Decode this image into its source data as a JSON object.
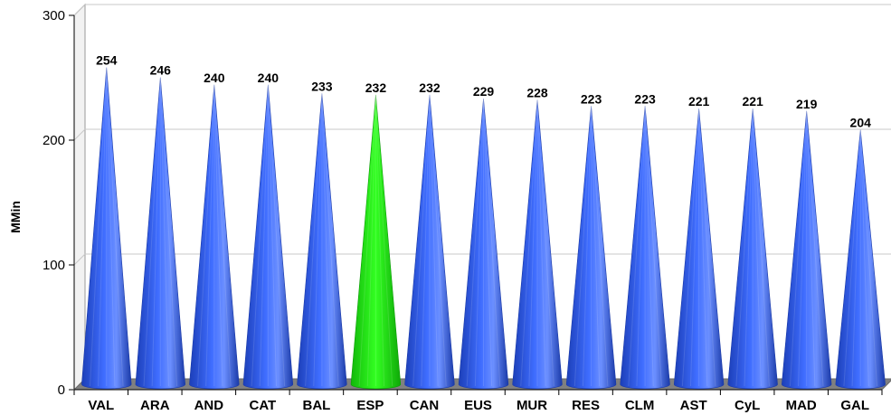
{
  "chart_data": {
    "type": "bar",
    "shape": "cone",
    "title": "",
    "xlabel": "",
    "ylabel": "MMin",
    "ylim": [
      0,
      300
    ],
    "yticks": [
      0,
      100,
      200,
      300
    ],
    "grid": true,
    "legend": "none",
    "categories": [
      "VAL",
      "ARA",
      "AND",
      "CAT",
      "BAL",
      "ESP",
      "CAN",
      "EUS",
      "MUR",
      "RES",
      "CLM",
      "AST",
      "CyL",
      "MAD",
      "GAL"
    ],
    "values": [
      254,
      246,
      240,
      240,
      233,
      232,
      232,
      229,
      228,
      223,
      223,
      221,
      221,
      219,
      204
    ],
    "colors": {
      "default": "#2f5bef",
      "highlight": "#22ee11",
      "highlight_category": "ESP",
      "floor": "#808080",
      "gridline": "#c8c8c8"
    }
  }
}
